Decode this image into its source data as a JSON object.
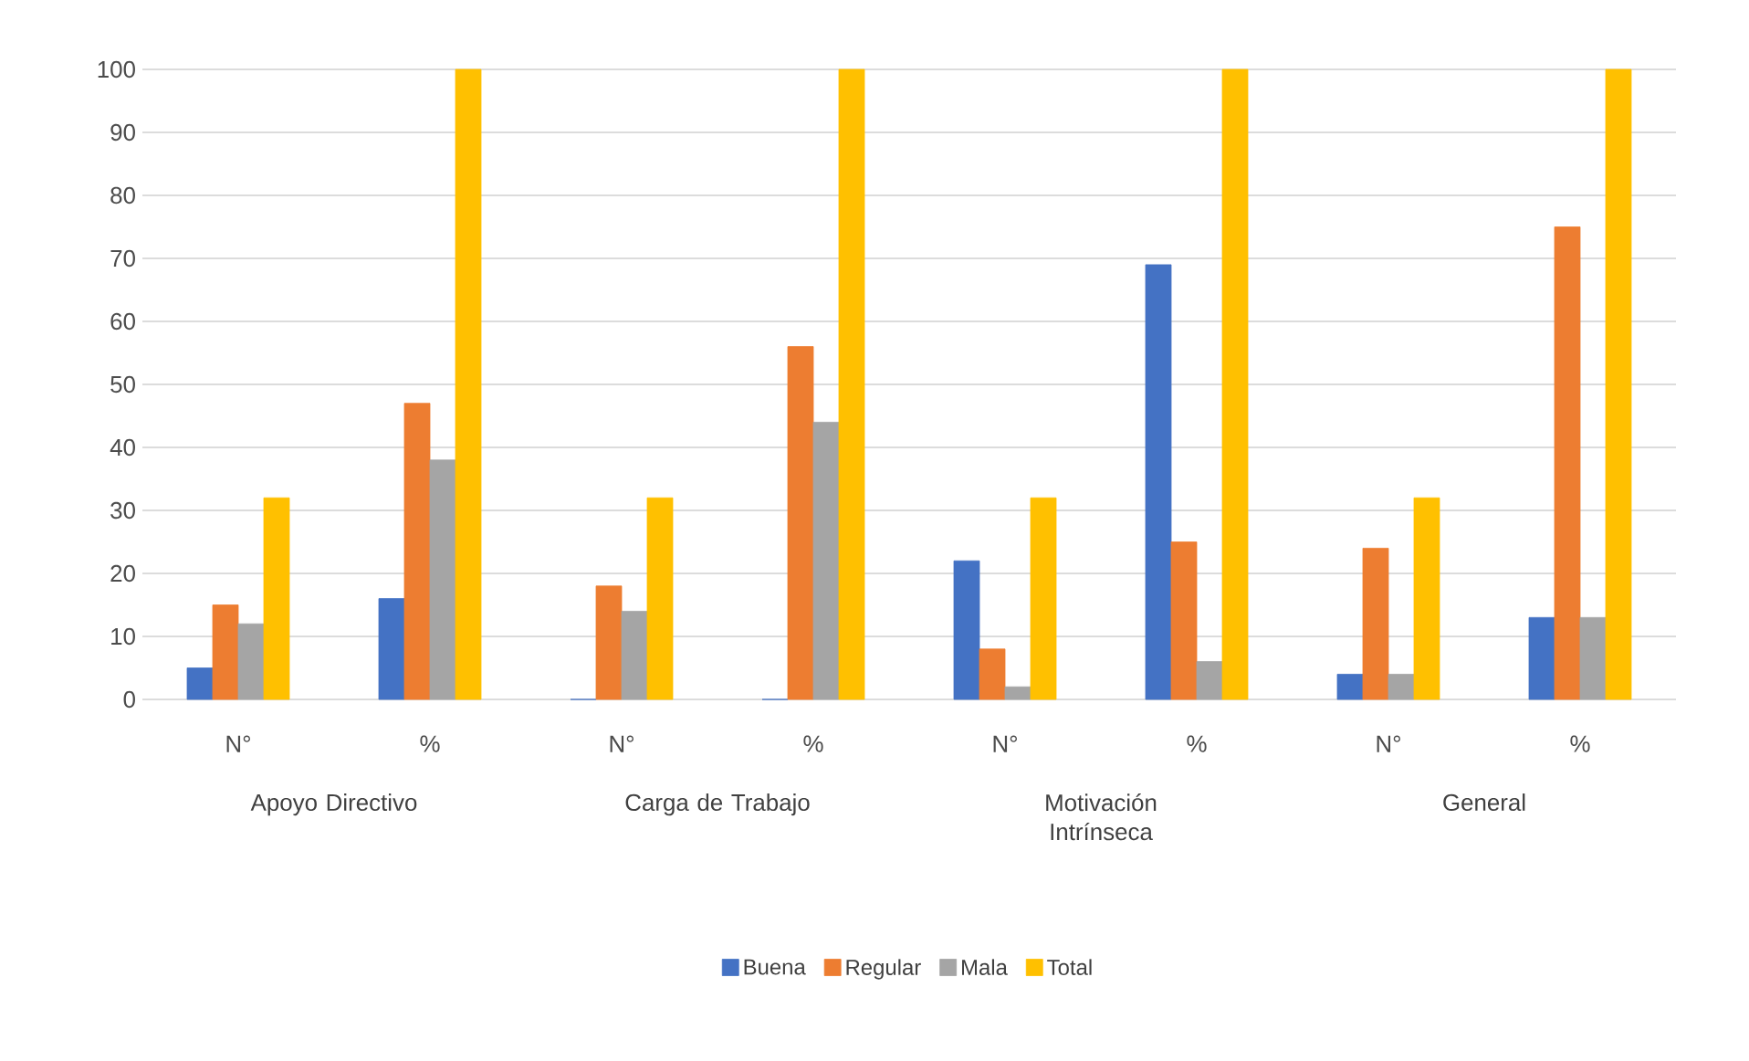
{
  "chart_data": {
    "type": "bar",
    "categories": [
      "N°",
      "%",
      "N°",
      "%",
      "N°",
      "%",
      "N°",
      "%"
    ],
    "series": [
      {
        "name": "Buena",
        "color": "#4472c4",
        "values": [
          5,
          16,
          0,
          0,
          22,
          69,
          4,
          13
        ]
      },
      {
        "name": "Regular",
        "color": "#ed7d31",
        "values": [
          15,
          47,
          18,
          56,
          8,
          25,
          24,
          75
        ]
      },
      {
        "name": "Mala",
        "color": "#a5a5a5",
        "values": [
          12,
          38,
          14,
          44,
          2,
          6,
          4,
          13
        ]
      },
      {
        "name": "Total",
        "color": "#ffc000",
        "values": [
          32,
          100,
          32,
          100,
          32,
          100,
          32,
          100
        ]
      }
    ],
    "annotations": [
      "Apoyo Directivo",
      "Carga de Trabajo",
      "Motivación Intrínseca",
      "General"
    ],
    "ylim": [
      0,
      100
    ],
    "yticks": [
      0,
      10,
      20,
      30,
      40,
      50,
      60,
      70,
      80,
      90,
      100
    ],
    "grid": "y",
    "legend": "bottom"
  }
}
